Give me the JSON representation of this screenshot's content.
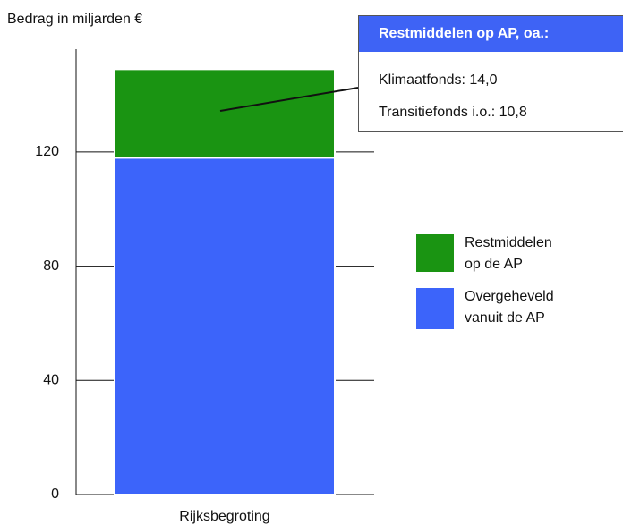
{
  "chart_data": {
    "type": "stacked_bar",
    "y_axis_label": "Bedrag in miljarden €",
    "categories": [
      "Rijksbegroting"
    ],
    "series": [
      {
        "name": "Overgeheveld vanuit de AP",
        "color": "#3c64fa",
        "values": [
          118
        ]
      },
      {
        "name": "Restmiddelen op de AP",
        "color": "#1a9412",
        "values": [
          31
        ]
      }
    ],
    "ylim": [
      0,
      156
    ],
    "yticks": [
      0,
      40,
      80,
      120
    ],
    "grid": true,
    "legend": "right",
    "annotation": {
      "title": "Restmiddelen op AP, oa.:",
      "lines": [
        "Klimaatfonds: 14,0",
        "Transitiefonds i.o.: 10,8"
      ]
    }
  }
}
